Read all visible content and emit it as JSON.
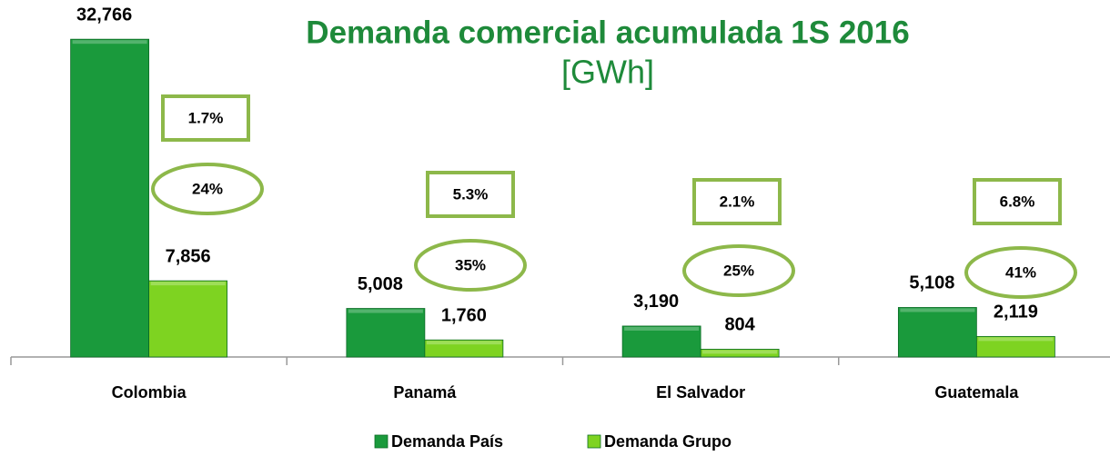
{
  "chart_data": {
    "type": "bar",
    "title": "Demanda comercial acumulada 1S 2016",
    "subtitle": "[GWh]",
    "categories": [
      "Colombia",
      "Panamá",
      "El Salvador",
      "Guatemala"
    ],
    "series": [
      {
        "name": "Demanda País",
        "color": "#1a9a3c",
        "values": [
          32766,
          5008,
          3190,
          5108
        ],
        "value_labels": [
          "32,766",
          "5,008",
          "3,190",
          "5,108"
        ]
      },
      {
        "name": "Demanda Grupo",
        "color": "#7ed321",
        "values": [
          7856,
          1760,
          804,
          2119
        ],
        "value_labels": [
          "7,856",
          "1,760",
          "804",
          "2,119"
        ]
      }
    ],
    "box_labels": [
      "1.7%",
      "5.3%",
      "2.1%",
      "6.8%"
    ],
    "oval_labels": [
      "24%",
      "35%",
      "25%",
      "41%"
    ],
    "ylim": [
      0,
      34000
    ],
    "legend": "bottom"
  }
}
